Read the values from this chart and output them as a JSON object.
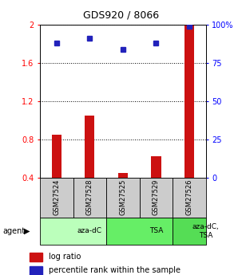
{
  "title": "GDS920 / 8066",
  "samples": [
    "GSM27524",
    "GSM27528",
    "GSM27525",
    "GSM27529",
    "GSM27526"
  ],
  "log_ratio": [
    0.85,
    1.05,
    0.45,
    0.62,
    2.0
  ],
  "percentile": [
    88,
    91,
    84,
    88,
    99
  ],
  "ylim_left": [
    0.4,
    2.0
  ],
  "ylim_right": [
    0,
    100
  ],
  "yticks_left": [
    0.4,
    0.8,
    1.2,
    1.6,
    2.0
  ],
  "yticks_right": [
    0,
    25,
    50,
    75,
    100
  ],
  "ytick_labels_left": [
    "0.4",
    "0.8",
    "1.2",
    "1.6",
    "2"
  ],
  "ytick_labels_right": [
    "0",
    "25",
    "50",
    "75",
    "100%"
  ],
  "bar_color": "#cc1111",
  "dot_color": "#2222bb",
  "agent_groups": [
    {
      "label": "aza-dC",
      "span": [
        0,
        2
      ],
      "color": "#bbffbb"
    },
    {
      "label": "TSA",
      "span": [
        2,
        4
      ],
      "color": "#66ee66"
    },
    {
      "label": "aza-dC,\nTSA",
      "span": [
        4,
        5
      ],
      "color": "#55dd55"
    }
  ],
  "bg_color": "#ffffff",
  "sample_box_color": "#cccccc",
  "legend_log_ratio": "log ratio",
  "legend_percentile": "percentile rank within the sample"
}
